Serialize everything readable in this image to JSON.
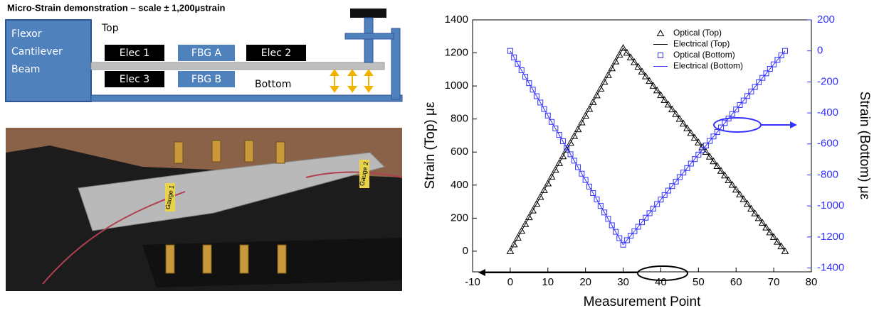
{
  "diagram": {
    "title": "Micro-Strain demonstration – scale ± 1,200µstrain",
    "beam_label": [
      "Flexor",
      "Cantilever",
      "Beam"
    ],
    "top": "Top",
    "bottom": "Bottom",
    "elec_1": "Elec 1",
    "fbg_a": "FBG A",
    "elec_2": "Elec 2",
    "elec_3": "Elec 3",
    "fbg_b": "FBG B"
  },
  "photo": {
    "gauge_1": "Gauge 1",
    "gauge_2": "Gauge 2"
  },
  "chart_data": {
    "type": "line",
    "x_label": "Measurement Point",
    "y_label": "Strain (Top) με",
    "y2_label": "Strain (Bottom) με",
    "xlim": [
      -10,
      80
    ],
    "xticks": [
      -10,
      0,
      10,
      20,
      30,
      40,
      50,
      60,
      70,
      80
    ],
    "ylim": [
      -125,
      1400
    ],
    "yticks": [
      0,
      200,
      400,
      600,
      800,
      1000,
      1200,
      1400
    ],
    "y2lim": [
      -1425,
      200
    ],
    "y2ticks": [
      -1400,
      -1200,
      -1000,
      -800,
      -600,
      -400,
      -200,
      0,
      200
    ],
    "y2_color": "#3333ff",
    "legend": "upper right",
    "x": [
      0,
      1,
      2,
      3,
      4,
      5,
      6,
      7,
      8,
      9,
      10,
      11,
      12,
      13,
      14,
      15,
      16,
      17,
      18,
      19,
      20,
      21,
      22,
      23,
      24,
      25,
      26,
      27,
      28,
      29,
      30,
      31,
      32,
      33,
      34,
      35,
      36,
      37,
      38,
      39,
      40,
      41,
      42,
      43,
      44,
      45,
      46,
      47,
      48,
      49,
      50,
      51,
      52,
      53,
      54,
      55,
      56,
      57,
      58,
      59,
      60,
      61,
      62,
      63,
      64,
      65,
      66,
      67,
      68,
      69,
      70,
      71,
      72,
      73
    ],
    "series": [
      {
        "name": "Optical (Top)",
        "color": "#000000",
        "marker": "triangle",
        "values": [
          0,
          41,
          82,
          123,
          164,
          205,
          246,
          287,
          328,
          369,
          410,
          451,
          492,
          533,
          574,
          615,
          656,
          697,
          738,
          779,
          820,
          861,
          902,
          943,
          984,
          1025,
          1066,
          1107,
          1148,
          1189,
          1230,
          1201,
          1173,
          1144,
          1116,
          1087,
          1058,
          1030,
          1001,
          973,
          944,
          915,
          887,
          858,
          830,
          801,
          772,
          744,
          715,
          687,
          658,
          629,
          601,
          572,
          544,
          515,
          486,
          458,
          429,
          401,
          372,
          343,
          315,
          286,
          257,
          229,
          200,
          172,
          143,
          114,
          86,
          57,
          29,
          0
        ]
      },
      {
        "name": "Electrical (Top)",
        "color": "#000000",
        "marker": "none",
        "x": [
          0,
          30,
          73
        ],
        "values": [
          0,
          1230,
          0
        ]
      },
      {
        "name": "Optical (Bottom)",
        "color": "#3333ff",
        "marker": "square",
        "axis": "y2",
        "values": [
          0,
          -42,
          -83,
          -125,
          -167,
          -208,
          -250,
          -292,
          -333,
          -375,
          -417,
          -458,
          -500,
          -542,
          -583,
          -625,
          -667,
          -708,
          -750,
          -792,
          -833,
          -875,
          -917,
          -958,
          -1000,
          -1042,
          -1083,
          -1125,
          -1167,
          -1208,
          -1250,
          -1221,
          -1192,
          -1163,
          -1134,
          -1105,
          -1076,
          -1047,
          -1017,
          -988,
          -959,
          -930,
          -901,
          -872,
          -843,
          -814,
          -785,
          -756,
          -727,
          -698,
          -669,
          -640,
          -610,
          -581,
          -552,
          -523,
          -494,
          -465,
          -436,
          -407,
          -378,
          -349,
          -320,
          -291,
          -262,
          -233,
          -203,
          -174,
          -145,
          -116,
          -87,
          -58,
          -29,
          0
        ]
      },
      {
        "name": "Electrical (Bottom)",
        "color": "#3333ff",
        "marker": "none",
        "axis": "y2",
        "x": [
          0,
          30,
          73
        ],
        "values": [
          0,
          -1250,
          0
        ]
      }
    ]
  }
}
